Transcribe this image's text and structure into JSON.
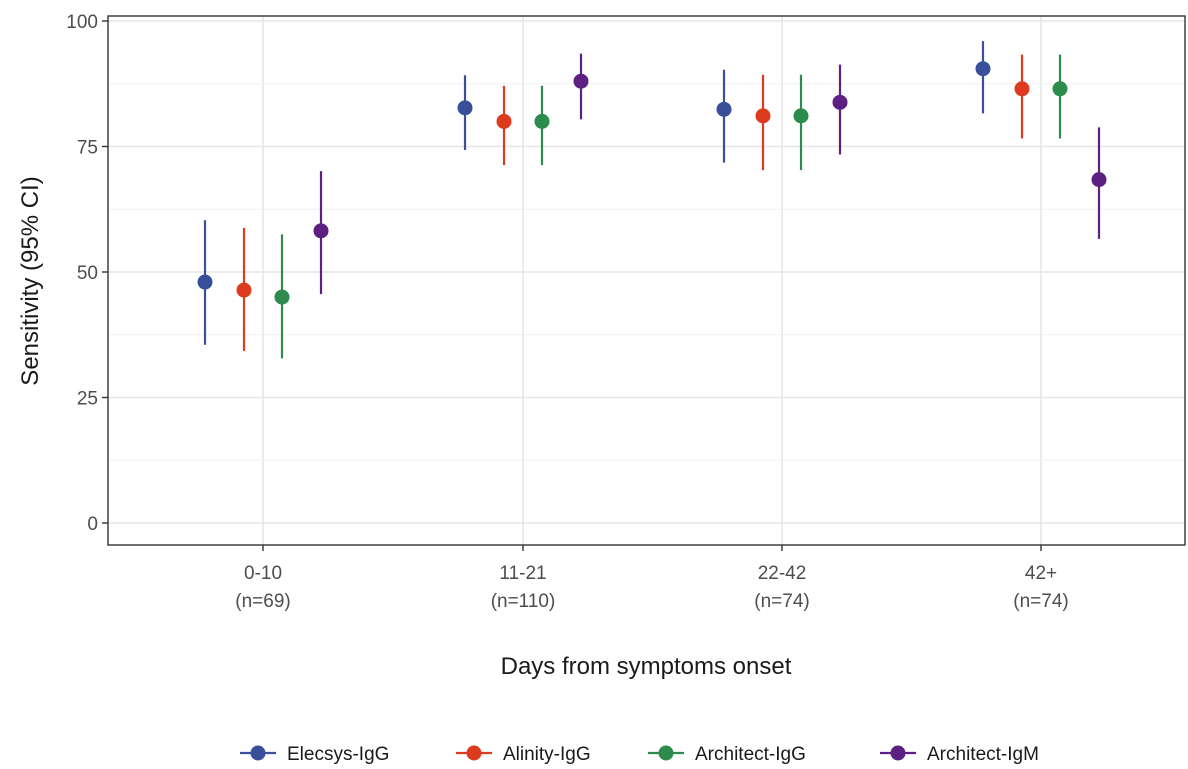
{
  "chart_data": {
    "type": "scatter",
    "subtype": "point-range (dodged points with 95% CI error bars)",
    "xlabel": "Days from symptoms onset",
    "ylabel": "Sensitivity (95% CI)",
    "categories": [
      {
        "label": "0-10",
        "n": "(n=69)"
      },
      {
        "label": "11-21",
        "n": "(n=110)"
      },
      {
        "label": "22-42",
        "n": "(n=74)"
      },
      {
        "label": "42+",
        "n": "(n=74)"
      }
    ],
    "ylim": [
      0,
      100
    ],
    "yticks": [
      "0",
      "25",
      "50",
      "75",
      "100"
    ],
    "grid": true,
    "legend_position": "bottom",
    "series": [
      {
        "name": "Elecsys-IgG",
        "color": "#3a4f9a",
        "values": [
          48,
          82.7,
          82.4,
          90.5
        ],
        "lower": [
          35.5,
          74.3,
          71.8,
          81.6
        ],
        "upper": [
          60.3,
          89.2,
          90.3,
          96.0
        ]
      },
      {
        "name": "Alinity-IgG",
        "color": "#dc3b1e",
        "values": [
          46.4,
          80.0,
          81.1,
          86.5
        ],
        "lower": [
          34.3,
          71.3,
          70.3,
          76.6
        ],
        "upper": [
          58.8,
          87.1,
          89.3,
          93.3
        ]
      },
      {
        "name": "Architect-IgG",
        "color": "#2e8b4e",
        "values": [
          45.0,
          80.0,
          81.1,
          86.5
        ],
        "lower": [
          32.8,
          71.3,
          70.3,
          76.6
        ],
        "upper": [
          57.5,
          87.1,
          89.3,
          93.3
        ]
      },
      {
        "name": "Architect-IgM",
        "color": "#5c1f82",
        "values": [
          58.2,
          88.0,
          83.8,
          68.4
        ],
        "lower": [
          45.6,
          80.4,
          73.4,
          56.6
        ],
        "upper": [
          70.1,
          93.5,
          91.3,
          78.8
        ]
      }
    ]
  }
}
